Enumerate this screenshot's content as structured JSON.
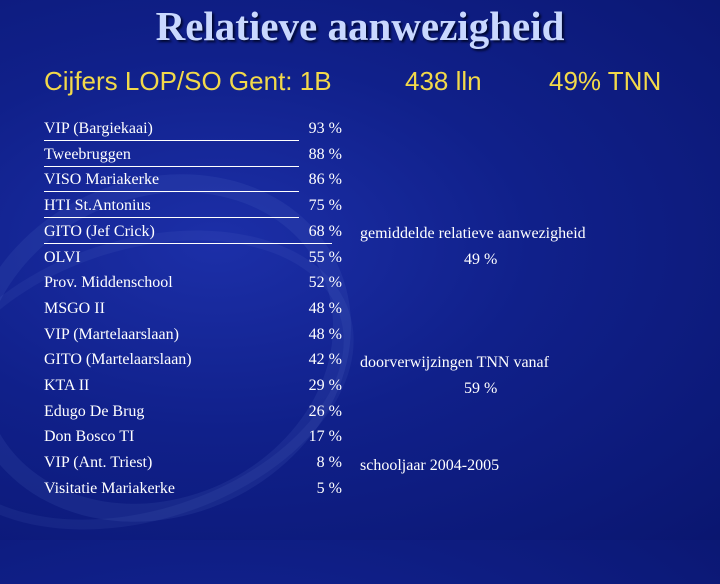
{
  "title": "Relatieve aanwezigheid",
  "subtitle": {
    "left": "Cijfers LOP/SO Gent:  1B",
    "middle": "438 lln",
    "right": "49% TNN"
  },
  "schools": [
    {
      "name": "VIP (Bargiekaai)",
      "pct": "93 %",
      "underlined": true
    },
    {
      "name": "Tweebruggen",
      "pct": "88 %",
      "underlined": true
    },
    {
      "name": "VISO Mariakerke",
      "pct": "86 %",
      "underlined": true
    },
    {
      "name": "HTI St.Antonius",
      "pct": "75 %",
      "underlined": true
    },
    {
      "name": "GITO (Jef Crick)",
      "pct": "68 %",
      "underlined": true
    },
    {
      "name": "OLVI",
      "pct": "55 %",
      "underlined": false
    },
    {
      "name": "Prov. Middenschool",
      "pct": "52 %",
      "underlined": false
    },
    {
      "name": "MSGO II",
      "pct": "48 %",
      "underlined": false
    },
    {
      "name": "VIP (Martelaarslaan)",
      "pct": "48 %",
      "underlined": false
    },
    {
      "name": "GITO (Martelaarslaan)",
      "pct": "42 %",
      "underlined": false
    },
    {
      "name": "KTA II",
      "pct": "29 %",
      "underlined": false
    },
    {
      "name": "Edugo De Brug",
      "pct": "26 %",
      "underlined": false
    },
    {
      "name": "Don Bosco TI",
      "pct": "17 %",
      "underlined": false
    },
    {
      "name": "VIP (Ant. Triest)",
      "pct": "8 %",
      "underlined": false
    },
    {
      "name": "Visitatie Mariakerke",
      "pct": "5 %",
      "underlined": false
    }
  ],
  "notes": {
    "average_label": "gemiddelde relatieve aanwezigheid",
    "average_value": "49 %",
    "referral_label": "doorverwijzingen TNN vanaf",
    "referral_value": "59 %",
    "school_year": "schooljaar 2004-2005"
  }
}
